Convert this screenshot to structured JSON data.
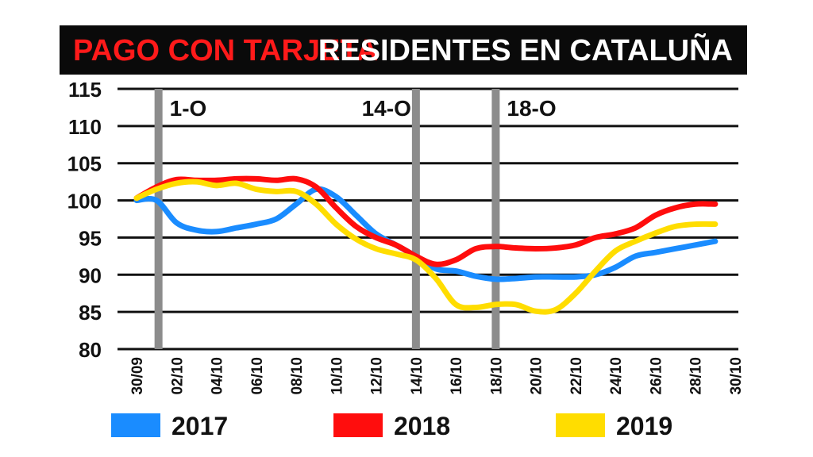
{
  "chart_data": {
    "type": "line",
    "title_part1": "PAGO CON TARJETA",
    "title_part2": "RESIDENTES EN CATALUÑA",
    "ylim": [
      80,
      115
    ],
    "y_ticks": [
      "80",
      "85",
      "90",
      "95",
      "100",
      "105",
      "110",
      "115"
    ],
    "x_ticks": [
      "30/09",
      "02/10",
      "04/10",
      "06/10",
      "08/10",
      "10/10",
      "12/10",
      "14/10",
      "16/10",
      "18/10",
      "20/10",
      "22/10",
      "24/10",
      "26/10",
      "28/10",
      "30/10"
    ],
    "grid": true,
    "events": [
      {
        "label": "1-O",
        "day": 1.1
      },
      {
        "label": "14-O",
        "day": 14
      },
      {
        "label": "18-O",
        "day": 18
      }
    ],
    "series": [
      {
        "name": "2017",
        "color": "#1a8cff",
        "x": [
          0,
          1,
          2,
          3,
          4,
          5,
          6,
          7,
          8,
          9,
          10,
          11,
          12,
          13,
          14,
          15,
          16,
          17,
          18,
          19,
          20,
          21,
          22,
          23,
          24,
          25,
          26,
          27,
          28,
          29
        ],
        "y": [
          100,
          100,
          97,
          96,
          95.8,
          96.3,
          96.8,
          97.5,
          99.5,
          101.5,
          100.5,
          98,
          95.5,
          94,
          92.5,
          90.8,
          90.5,
          89.8,
          89.4,
          89.5,
          89.7,
          89.7,
          89.7,
          90,
          91,
          92.5,
          93,
          93.5,
          94,
          94.5
        ]
      },
      {
        "name": "2018",
        "color": "#ff0d0d",
        "x": [
          0,
          1,
          2,
          3,
          4,
          5,
          6,
          7,
          8,
          9,
          10,
          11,
          12,
          13,
          14,
          15,
          16,
          17,
          18,
          19,
          20,
          21,
          22,
          23,
          24,
          25,
          26,
          27,
          28,
          29
        ],
        "y": [
          100.3,
          101.8,
          102.8,
          102.7,
          102.7,
          102.9,
          102.9,
          102.7,
          102.9,
          101.8,
          99,
          96.5,
          95,
          94,
          92.5,
          91.4,
          92,
          93.5,
          93.8,
          93.6,
          93.5,
          93.6,
          94,
          95,
          95.5,
          96.3,
          98,
          99,
          99.5,
          99.5
        ]
      },
      {
        "name": "2019",
        "color": "#ffdd00",
        "x": [
          0,
          1,
          2,
          3,
          4,
          5,
          6,
          7,
          8,
          9,
          10,
          11,
          12,
          13,
          14,
          15,
          16,
          17,
          18,
          19,
          20,
          21,
          22,
          23,
          24,
          25,
          26,
          27,
          28,
          29
        ],
        "y": [
          100.3,
          101.5,
          102.3,
          102.5,
          102,
          102.3,
          101.5,
          101.2,
          101.2,
          99.5,
          96.8,
          94.8,
          93.5,
          92.8,
          92,
          89.5,
          86,
          85.6,
          86,
          86,
          85.1,
          85.3,
          87.5,
          90.5,
          93.2,
          94.5,
          95.6,
          96.5,
          96.8,
          96.8
        ]
      }
    ]
  }
}
